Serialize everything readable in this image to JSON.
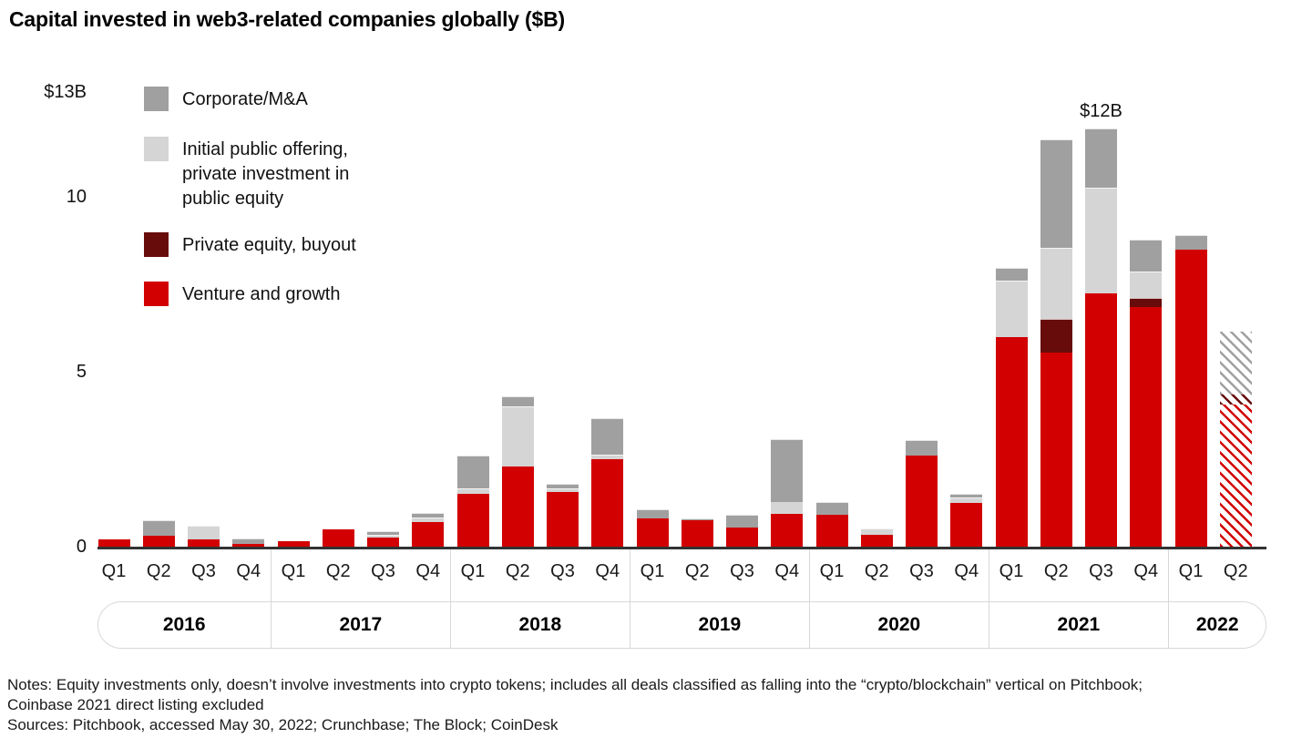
{
  "title": "Capital invested in web3-related companies globally ($B)",
  "colors": {
    "venture": "#d20000",
    "pe": "#680b0b",
    "ipo": "#d5d5d5",
    "ma": "#a0a0a0",
    "axis": "#333333",
    "separator": "#d8d8d8"
  },
  "legend": {
    "items": [
      {
        "key": "ma",
        "label": "Corporate/M&A",
        "color": "#a0a0a0"
      },
      {
        "key": "ipo",
        "label": "Initial public offering,\nprivate investment in\npublic equity",
        "color": "#d5d5d5"
      },
      {
        "key": "pe",
        "label": "Private equity, buyout",
        "color": "#680b0b"
      },
      {
        "key": "venture",
        "label": "Venture and growth",
        "color": "#d20000"
      }
    ]
  },
  "chart_data": {
    "type": "bar",
    "stacked": true,
    "title": "Capital invested in web3-related companies globally ($B)",
    "unit": "$B",
    "ylim": [
      0,
      13
    ],
    "grid": false,
    "legend_position": "top-left",
    "y_ticks": [
      {
        "value": 13,
        "label": "$13B"
      },
      {
        "value": 10,
        "label": "10"
      },
      {
        "value": 5,
        "label": "5"
      },
      {
        "value": 0,
        "label": "0"
      }
    ],
    "series_order_bottom_to_top": [
      "venture",
      "pe",
      "ipo",
      "ma"
    ],
    "series_names": {
      "venture": "Venture and growth",
      "pe": "Private equity, buyout",
      "ipo": "Initial public offering, private investment in public equity",
      "ma": "Corporate/M&A"
    },
    "years": [
      {
        "label": "2016",
        "quarters": [
          "Q1",
          "Q2",
          "Q3",
          "Q4"
        ]
      },
      {
        "label": "2017",
        "quarters": [
          "Q1",
          "Q2",
          "Q3",
          "Q4"
        ]
      },
      {
        "label": "2018",
        "quarters": [
          "Q1",
          "Q2",
          "Q3",
          "Q4"
        ]
      },
      {
        "label": "2019",
        "quarters": [
          "Q1",
          "Q2",
          "Q3",
          "Q4"
        ]
      },
      {
        "label": "2020",
        "quarters": [
          "Q1",
          "Q2",
          "Q3",
          "Q4"
        ]
      },
      {
        "label": "2021",
        "quarters": [
          "Q1",
          "Q2",
          "Q3",
          "Q4"
        ]
      },
      {
        "label": "2022",
        "quarters": [
          "Q1",
          "Q2"
        ]
      }
    ],
    "bars": [
      {
        "year": "2016",
        "quarter": "Q1",
        "venture": 0.2,
        "pe": 0,
        "ipo": 0,
        "ma": 0,
        "hatched": false
      },
      {
        "year": "2016",
        "quarter": "Q2",
        "venture": 0.3,
        "pe": 0,
        "ipo": 0,
        "ma": 0.45,
        "hatched": false
      },
      {
        "year": "2016",
        "quarter": "Q3",
        "venture": 0.2,
        "pe": 0,
        "ipo": 0.4,
        "ma": 0,
        "hatched": false
      },
      {
        "year": "2016",
        "quarter": "Q4",
        "venture": 0.08,
        "pe": 0,
        "ipo": 0,
        "ma": 0.16,
        "hatched": false
      },
      {
        "year": "2017",
        "quarter": "Q1",
        "venture": 0.15,
        "pe": 0,
        "ipo": 0,
        "ma": 0,
        "hatched": false
      },
      {
        "year": "2017",
        "quarter": "Q2",
        "venture": 0.5,
        "pe": 0,
        "ipo": 0,
        "ma": 0,
        "hatched": false
      },
      {
        "year": "2017",
        "quarter": "Q3",
        "venture": 0.25,
        "pe": 0,
        "ipo": 0.1,
        "ma": 0.1,
        "hatched": false
      },
      {
        "year": "2017",
        "quarter": "Q4",
        "venture": 0.7,
        "pe": 0,
        "ipo": 0.13,
        "ma": 0.14,
        "hatched": false
      },
      {
        "year": "2018",
        "quarter": "Q1",
        "venture": 1.5,
        "pe": 0,
        "ipo": 0.16,
        "ma": 0.95,
        "hatched": false
      },
      {
        "year": "2018",
        "quarter": "Q2",
        "venture": 2.3,
        "pe": 0,
        "ipo": 1.7,
        "ma": 0.3,
        "hatched": false
      },
      {
        "year": "2018",
        "quarter": "Q3",
        "venture": 1.55,
        "pe": 0,
        "ipo": 0.12,
        "ma": 0.13,
        "hatched": false
      },
      {
        "year": "2018",
        "quarter": "Q4",
        "venture": 2.5,
        "pe": 0,
        "ipo": 0.12,
        "ma": 1.05,
        "hatched": false
      },
      {
        "year": "2019",
        "quarter": "Q1",
        "venture": 0.8,
        "pe": 0,
        "ipo": 0,
        "ma": 0.26,
        "hatched": false
      },
      {
        "year": "2019",
        "quarter": "Q2",
        "venture": 0.75,
        "pe": 0,
        "ipo": 0,
        "ma": 0.05,
        "hatched": false
      },
      {
        "year": "2019",
        "quarter": "Q3",
        "venture": 0.55,
        "pe": 0,
        "ipo": 0,
        "ma": 0.35,
        "hatched": false
      },
      {
        "year": "2019",
        "quarter": "Q4",
        "venture": 0.95,
        "pe": 0,
        "ipo": 0.34,
        "ma": 1.78,
        "hatched": false
      },
      {
        "year": "2020",
        "quarter": "Q1",
        "venture": 0.9,
        "pe": 0,
        "ipo": 0,
        "ma": 0.37,
        "hatched": false
      },
      {
        "year": "2020",
        "quarter": "Q2",
        "venture": 0.35,
        "pe": 0,
        "ipo": 0.18,
        "ma": 0,
        "hatched": false
      },
      {
        "year": "2020",
        "quarter": "Q3",
        "venture": 2.6,
        "pe": 0,
        "ipo": 0,
        "ma": 0.45,
        "hatched": false
      },
      {
        "year": "2020",
        "quarter": "Q4",
        "venture": 1.25,
        "pe": 0,
        "ipo": 0.16,
        "ma": 0.1,
        "hatched": false
      },
      {
        "year": "2021",
        "quarter": "Q1",
        "venture": 6.0,
        "pe": 0,
        "ipo": 1.6,
        "ma": 0.37,
        "hatched": false
      },
      {
        "year": "2021",
        "quarter": "Q2",
        "venture": 5.55,
        "pe": 0.95,
        "ipo": 2.05,
        "ma": 3.1,
        "hatched": false
      },
      {
        "year": "2021",
        "quarter": "Q3",
        "venture": 7.25,
        "pe": 0,
        "ipo": 3.0,
        "ma": 1.7,
        "hatched": false
      },
      {
        "year": "2021",
        "quarter": "Q4",
        "venture": 6.85,
        "pe": 0.26,
        "ipo": 0.76,
        "ma": 0.91,
        "hatched": false
      },
      {
        "year": "2022",
        "quarter": "Q1",
        "venture": 8.5,
        "pe": 0,
        "ipo": 0,
        "ma": 0.4,
        "hatched": false
      },
      {
        "year": "2022",
        "quarter": "Q2",
        "venture": 4.05,
        "pe": 0.3,
        "ipo": 0,
        "ma": 1.8,
        "hatched": true
      }
    ],
    "annotations": [
      {
        "text": "$12B",
        "year": "2021",
        "quarter": "Q3"
      }
    ]
  },
  "notes": {
    "line1": "Notes: Equity investments only, doesn’t involve investments into crypto tokens; includes all deals classified as falling into the “crypto/blockchain” vertical on Pitchbook;",
    "line2": "Coinbase 2021 direct listing excluded",
    "sources": "Sources: Pitchbook, accessed May 30, 2022; Crunchbase; The Block; CoinDesk"
  }
}
